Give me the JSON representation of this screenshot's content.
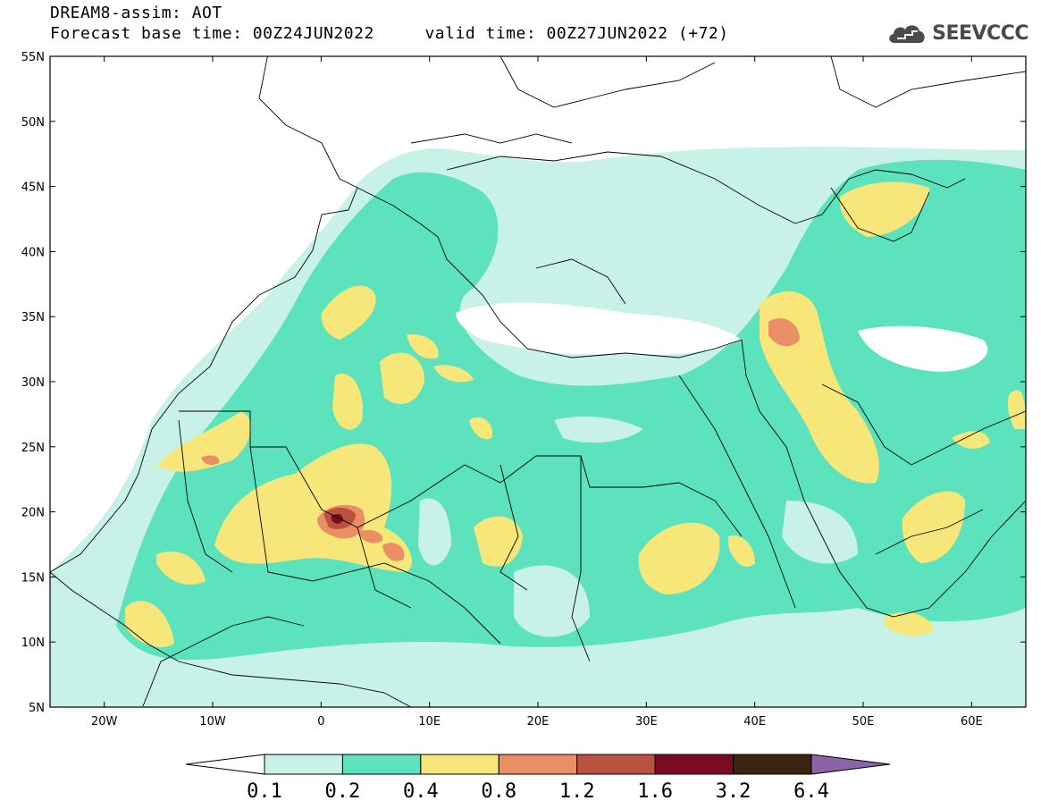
{
  "header": {
    "title": "DREAM8-assim: AOT",
    "base_time": "Forecast base time: 00Z24JUN2022",
    "valid_time": "valid time: 00Z27JUN2022 (+72)"
  },
  "logo": {
    "text": "SEEVCCC",
    "icon": "cloud-icon"
  },
  "axes": {
    "lat_labels": [
      "55N",
      "50N",
      "45N",
      "40N",
      "35N",
      "30N",
      "25N",
      "20N",
      "15N",
      "10N",
      "5N"
    ],
    "lon_labels": [
      "20W",
      "10W",
      "0",
      "10E",
      "20E",
      "30E",
      "40E",
      "50E",
      "60E"
    ],
    "lat_range": [
      5,
      55
    ],
    "lon_range": [
      -25,
      65
    ]
  },
  "colorbar": {
    "labels": [
      "0.1",
      "0.2",
      "0.4",
      "0.8",
      "1.2",
      "1.6",
      "3.2",
      "6.4"
    ],
    "colors": [
      "#c8f2e8",
      "#5ce2bd",
      "#f7e67a",
      "#ea8e66",
      "#b9533f",
      "#7b0a24",
      "#3a2410",
      "#8a64a6"
    ]
  }
}
